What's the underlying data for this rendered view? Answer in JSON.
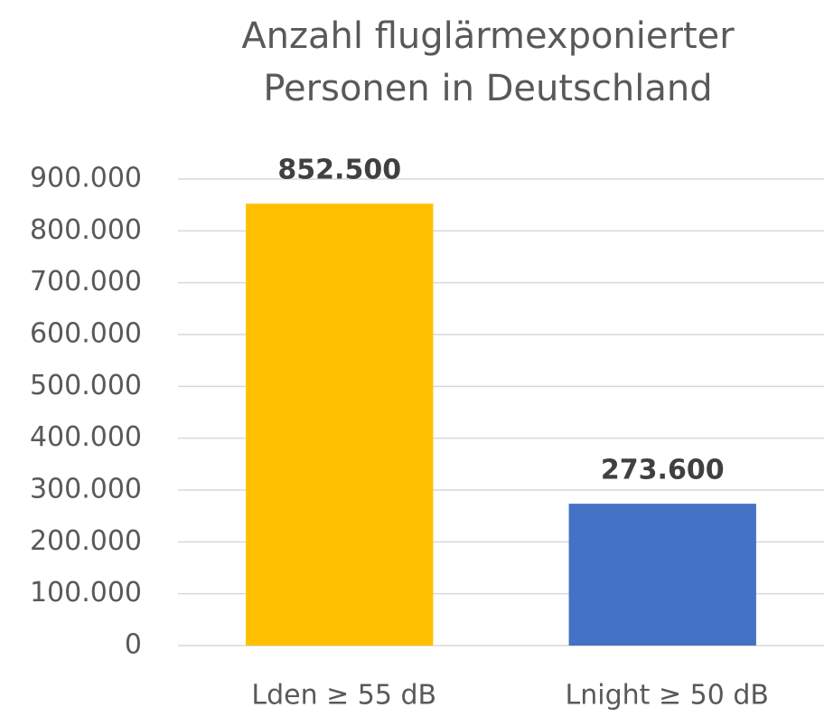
{
  "chart_data": {
    "type": "bar",
    "title": [
      "Anzahl fluglärmexponierter",
      "Personen in Deutschland"
    ],
    "categories": [
      "Lden ≥ 55 dB",
      "Lnight ≥ 50 dB"
    ],
    "values": [
      852500,
      273600
    ],
    "value_labels": [
      "852.500",
      "273.600"
    ],
    "colors": [
      "#ffc000",
      "#4472c4"
    ],
    "ylim": [
      0,
      900000
    ],
    "yticks": [
      0,
      {
        "value": 100000,
        "label": "100.000"
      },
      {
        "value": 200000,
        "label": "200.000"
      },
      {
        "value": 300000,
        "label": "300.000"
      },
      {
        "value": 400000,
        "label": "400.000"
      },
      {
        "value": 500000,
        "label": "500.000"
      },
      {
        "value": 600000,
        "label": "600.000"
      },
      {
        "value": 700000,
        "label": "700.000"
      },
      {
        "value": 800000,
        "label": "800.000"
      },
      {
        "value": 900000,
        "label": "900.000"
      }
    ],
    "grid": true
  }
}
